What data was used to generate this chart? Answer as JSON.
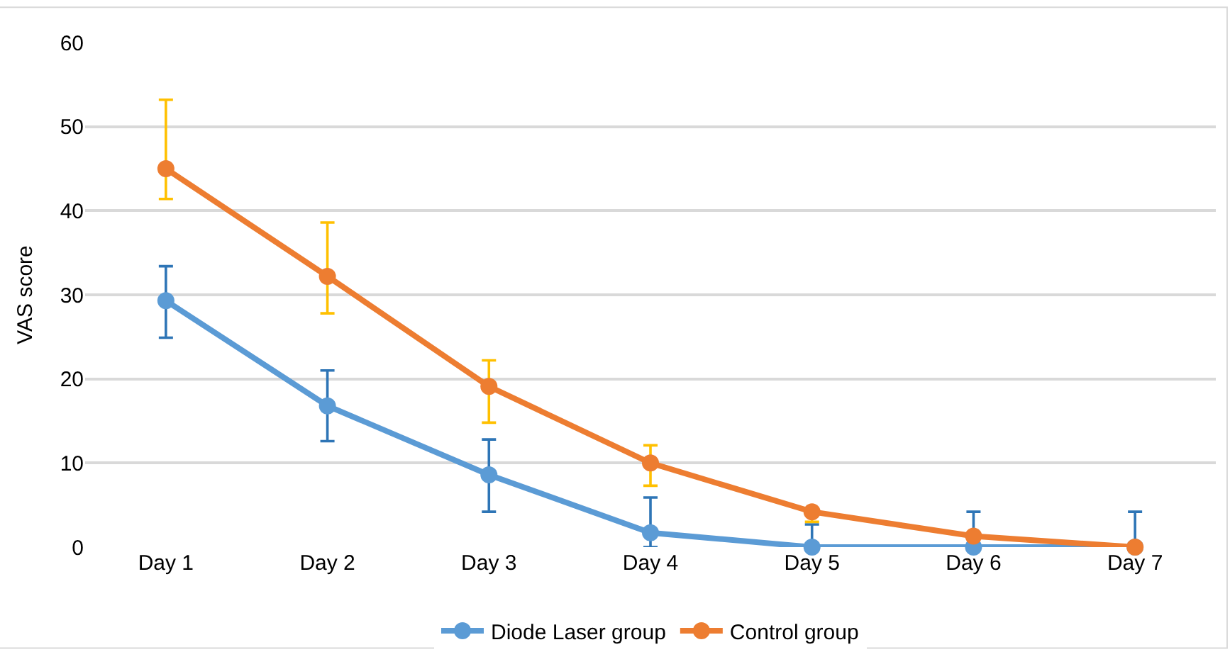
{
  "chart_data": {
    "type": "line",
    "ylabel": "VAS score",
    "categories": [
      "Day 1",
      "Day 2",
      "Day 3",
      "Day 4",
      "Day 5",
      "Day 6",
      "Day 7"
    ],
    "series": [
      {
        "name": "Diode Laser group",
        "color": "#5b9bd5",
        "values": [
          29.3,
          16.8,
          8.6,
          1.7,
          0,
          0,
          0
        ],
        "errors": [
          [
            24.9,
            33.4
          ],
          [
            12.6,
            21.0
          ],
          [
            4.2,
            12.8
          ],
          [
            0,
            5.9
          ],
          [
            0,
            2.7
          ],
          [
            0,
            4.2
          ],
          [
            0,
            4.2
          ]
        ]
      },
      {
        "name": "Control group",
        "color": "#ed7d31",
        "values": [
          45.0,
          32.2,
          19.1,
          10.0,
          4.2,
          1.3,
          0
        ],
        "errors": [
          [
            41.4,
            53.2
          ],
          [
            27.8,
            38.6
          ],
          [
            14.8,
            22.2
          ],
          [
            7.3,
            12.1
          ],
          [
            3.0,
            4.2
          ],
          null,
          null
        ]
      }
    ],
    "ylim": [
      0,
      60
    ],
    "yticks": [
      0,
      10,
      20,
      30,
      40,
      50,
      60
    ],
    "grid": "y",
    "legend": "bottom",
    "marker": "circle",
    "line_style": "solid"
  }
}
